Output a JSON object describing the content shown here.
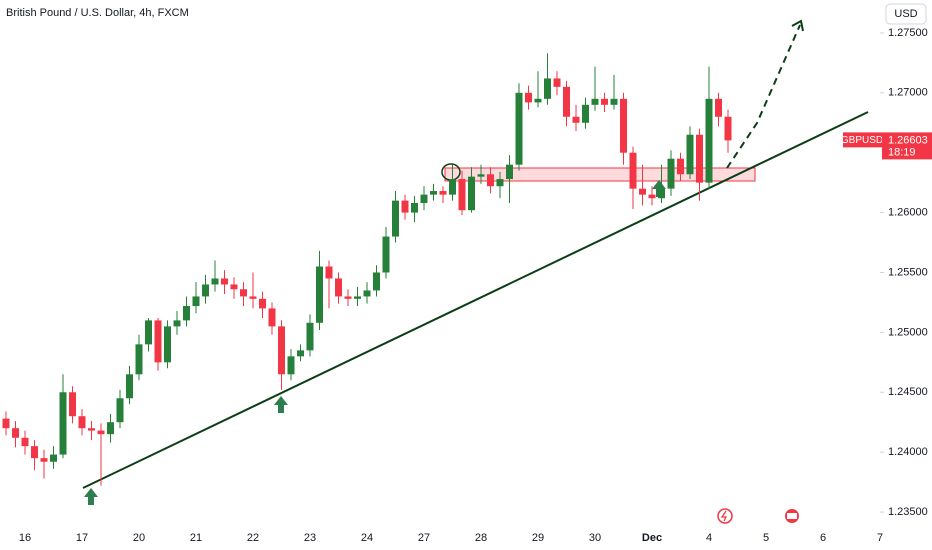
{
  "chart_data": {
    "type": "candlestick",
    "title": "British Pound / U.S. Dollar, 4h, FXCM",
    "currency": "USD",
    "symbol": "GBPUSD",
    "countdown": "18:19",
    "up_color": "#26803a",
    "down_color": "#f23645",
    "categories": [
      null,
      null,
      "16",
      null,
      null,
      null,
      null,
      null,
      "17",
      null,
      null,
      null,
      null,
      null,
      "20",
      null,
      null,
      null,
      null,
      null,
      "21",
      null,
      null,
      null,
      null,
      null,
      "22",
      null,
      null,
      null,
      null,
      null,
      "23",
      null,
      null,
      null,
      null,
      null,
      "24",
      null,
      null,
      null,
      null,
      null,
      "27",
      null,
      null,
      null,
      null,
      null,
      "28",
      null,
      null,
      null,
      null,
      null,
      "29",
      null,
      null,
      null,
      null,
      null,
      "30",
      null,
      null,
      null,
      null,
      null,
      "Dec",
      null,
      null,
      null,
      null,
      null,
      "4",
      null,
      null,
      null,
      null,
      null,
      "5",
      null,
      null,
      null,
      null,
      null,
      "6",
      null,
      null,
      null,
      null,
      null,
      "7"
    ],
    "open": [
      1.2428,
      1.242,
      1.2412,
      1.2405,
      1.2395,
      1.2392,
      1.2398,
      1.245,
      1.243,
      1.242,
      1.2418,
      1.2415,
      1.2425,
      1.2445,
      1.2465,
      1.249,
      1.251,
      1.2475,
      1.2505,
      1.251,
      1.2522,
      1.253,
      1.254,
      1.2545,
      1.254,
      1.2536,
      1.253,
      1.2528,
      1.252,
      1.2505,
      1.2465,
      1.248,
      1.2485,
      1.2508,
      1.2555,
      1.2545,
      1.253,
      1.2528,
      1.253,
      1.2535,
      1.255,
      1.258,
      1.261,
      1.26,
      1.2608,
      1.2615,
      1.2618,
      1.2615,
      1.2628,
      1.2602,
      1.263,
      1.2632,
      1.2622,
      1.2628,
      1.264,
      1.27,
      1.2692,
      1.2695,
      1.2712,
      1.2705,
      1.268,
      1.2675,
      1.269,
      1.2695,
      1.269,
      1.2695,
      1.265,
      1.262,
      1.2615,
      1.2612,
      1.262,
      1.2645,
      1.2632,
      1.2665,
      1.2625,
      1.2695,
      1.268,
      null,
      null,
      null,
      null,
      null,
      null,
      null,
      null,
      null,
      null,
      null,
      null,
      null,
      null,
      null,
      null
    ],
    "high": [
      1.2434,
      1.2426,
      1.2418,
      1.241,
      1.2402,
      1.2405,
      1.2465,
      1.2455,
      1.2436,
      1.2426,
      1.2424,
      1.2432,
      1.2452,
      1.2472,
      1.2498,
      1.2512,
      1.2512,
      1.251,
      1.2518,
      1.253,
      1.2542,
      1.2548,
      1.256,
      1.2552,
      1.2546,
      1.2542,
      1.255,
      1.2534,
      1.2525,
      1.251,
      1.2486,
      1.249,
      1.2515,
      1.2568,
      1.256,
      1.255,
      1.2536,
      1.2538,
      1.2542,
      1.2556,
      1.2588,
      1.2618,
      1.2615,
      1.2614,
      1.2622,
      1.2624,
      1.2622,
      1.264,
      1.2635,
      1.2638,
      1.264,
      1.2638,
      1.2634,
      1.2648,
      1.2708,
      1.2706,
      1.2718,
      1.2733,
      1.2718,
      1.271,
      1.269,
      1.2696,
      1.2722,
      1.27,
      1.2715,
      1.27,
      1.2655,
      1.264,
      1.2622,
      1.264,
      1.2652,
      1.265,
      1.2672,
      1.267,
      1.2722,
      1.27,
      1.2686,
      null,
      null,
      null,
      null,
      null,
      null,
      null,
      null,
      null,
      null,
      null,
      null,
      null,
      null,
      null,
      null
    ],
    "low": [
      1.2414,
      1.2404,
      1.2398,
      1.2385,
      1.2378,
      1.2386,
      1.2395,
      1.2424,
      1.2414,
      1.241,
      1.2372,
      1.2408,
      1.242,
      1.244,
      1.246,
      1.2484,
      1.2468,
      1.247,
      1.2498,
      1.2505,
      1.2516,
      1.2524,
      1.2534,
      1.2532,
      1.2528,
      1.2522,
      1.252,
      1.2512,
      1.2498,
      1.2452,
      1.246,
      1.2476,
      1.248,
      1.2502,
      1.252,
      1.2524,
      1.2522,
      1.2522,
      1.2524,
      1.253,
      1.2545,
      1.2575,
      1.2594,
      1.2592,
      1.2602,
      1.261,
      1.2608,
      1.261,
      1.2598,
      1.26,
      1.2624,
      1.2616,
      1.2612,
      1.2608,
      1.2635,
      1.2686,
      1.2688,
      1.269,
      1.2698,
      1.2672,
      1.2668,
      1.267,
      1.2685,
      1.2684,
      1.2686,
      1.264,
      1.2603,
      1.2606,
      1.2606,
      1.2608,
      1.2614,
      1.2626,
      1.2628,
      1.261,
      1.262,
      1.2672,
      1.265,
      null,
      null,
      null,
      null,
      null,
      null,
      null,
      null,
      null,
      null,
      null,
      null,
      null,
      null,
      null,
      null
    ],
    "close": [
      1.242,
      1.2412,
      1.2405,
      1.2395,
      1.2392,
      1.2398,
      1.245,
      1.243,
      1.242,
      1.2418,
      1.2415,
      1.2425,
      1.2445,
      1.2465,
      1.249,
      1.251,
      1.2475,
      1.2505,
      1.251,
      1.2522,
      1.253,
      1.254,
      1.2545,
      1.254,
      1.2536,
      1.253,
      1.2528,
      1.252,
      1.2505,
      1.2465,
      1.248,
      1.2485,
      1.2508,
      1.2555,
      1.2545,
      1.253,
      1.2528,
      1.253,
      1.2535,
      1.255,
      1.258,
      1.261,
      1.26,
      1.2608,
      1.2615,
      1.2618,
      1.2615,
      1.2628,
      1.2602,
      1.263,
      1.2632,
      1.2622,
      1.2628,
      1.264,
      1.27,
      1.2692,
      1.2695,
      1.2712,
      1.2705,
      1.268,
      1.2675,
      1.269,
      1.2695,
      1.269,
      1.2695,
      1.265,
      1.262,
      1.2615,
      1.2612,
      1.262,
      1.2645,
      1.2632,
      1.2665,
      1.2625,
      1.2695,
      1.268,
      1.26603,
      null,
      null,
      null,
      null,
      null,
      null,
      null,
      null,
      null,
      null,
      null,
      null,
      null,
      null,
      null,
      null
    ],
    "ylim": [
      1.2335,
      1.27775
    ],
    "yticks": [
      {
        "value": 1.275,
        "label": "1.27500"
      },
      {
        "value": 1.27,
        "label": "1.27000"
      },
      {
        "value": 1.26,
        "label": "1.26000"
      },
      {
        "value": 1.255,
        "label": "1.25500"
      },
      {
        "value": 1.25,
        "label": "1.25000"
      },
      {
        "value": 1.245,
        "label": "1.24500"
      },
      {
        "value": 1.24,
        "label": "1.24000"
      },
      {
        "value": 1.235,
        "label": "1.23500"
      }
    ],
    "grid": false
  }
}
